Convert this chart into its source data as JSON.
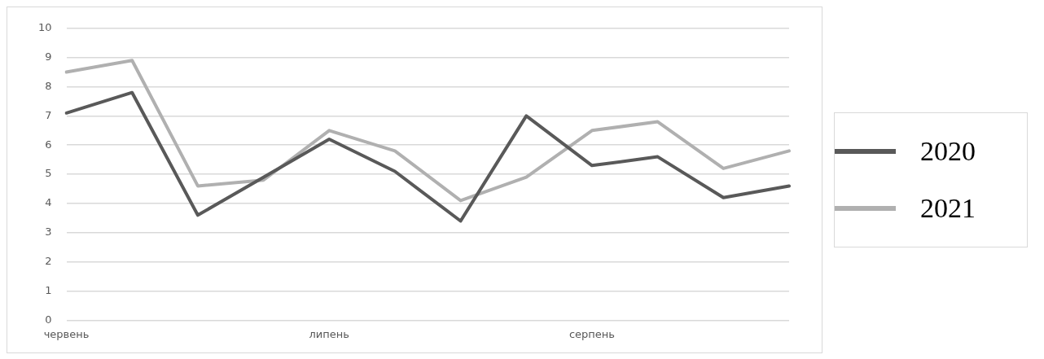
{
  "chart_data": {
    "type": "line",
    "categories": [
      "червень",
      null,
      null,
      null,
      "липень",
      null,
      null,
      null,
      "серпень",
      null,
      null,
      null
    ],
    "series": [
      {
        "name": "2020",
        "color": "#595959",
        "values": [
          7.1,
          7.8,
          3.6,
          4.9,
          6.2,
          5.1,
          3.4,
          7.0,
          5.3,
          5.6,
          4.2,
          4.6
        ]
      },
      {
        "name": "2021",
        "color": "#b0b0b0",
        "values": [
          8.5,
          8.9,
          4.6,
          4.8,
          6.5,
          5.8,
          4.1,
          4.9,
          6.5,
          6.8,
          5.2,
          5.8
        ]
      }
    ],
    "ylim": [
      0,
      10
    ],
    "yticks": [
      0,
      1,
      2,
      3,
      4,
      5,
      6,
      7,
      8,
      9,
      10
    ],
    "grid": "y",
    "legend": "right",
    "marker": "none",
    "line_style": "solid"
  }
}
